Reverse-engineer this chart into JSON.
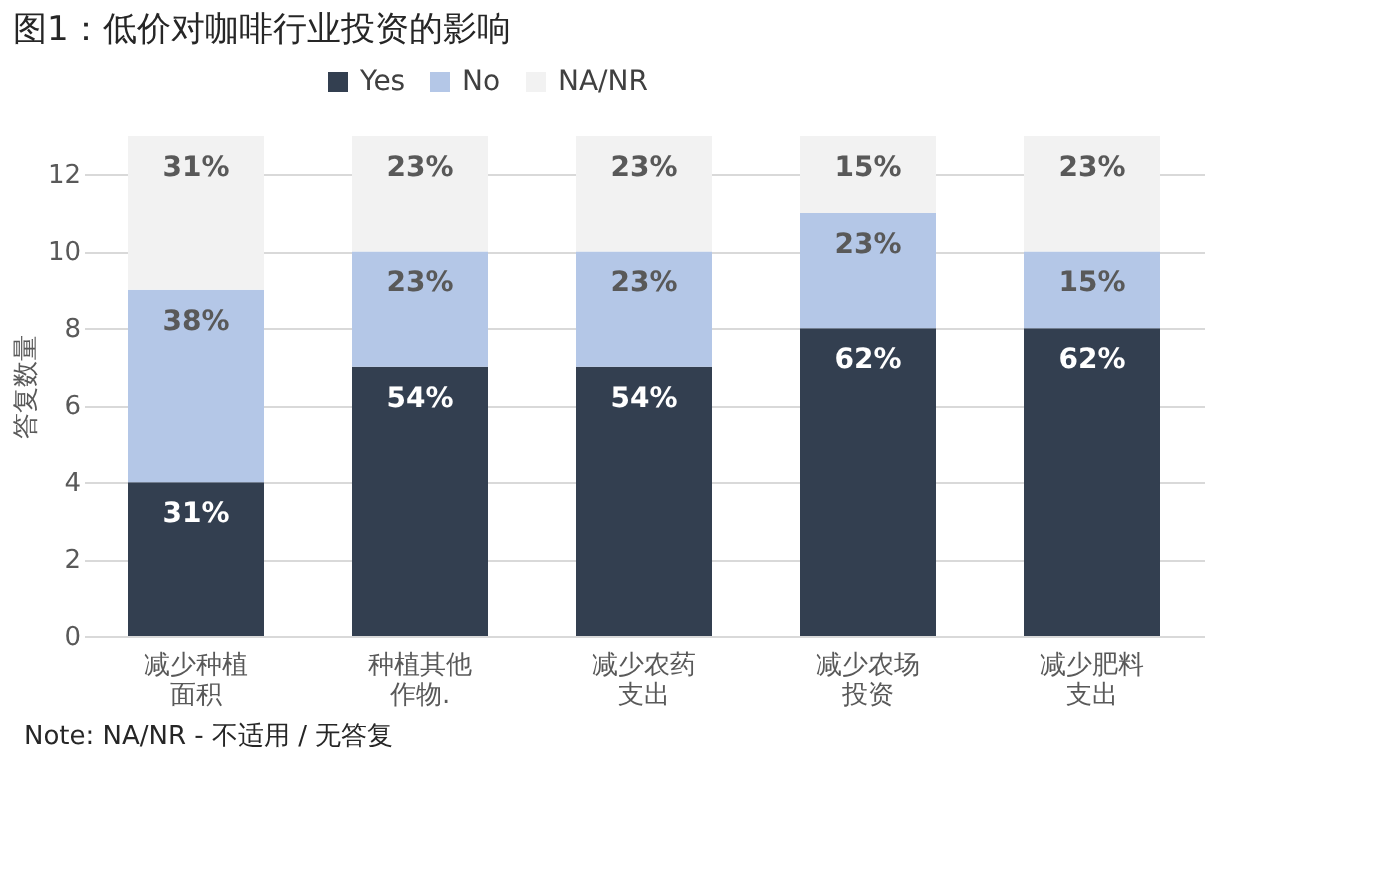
{
  "chart_data": {
    "type": "bar",
    "stacked": true,
    "title": "图1：低价对咖啡行业投资的影响",
    "ylabel": "答复数量",
    "categories": [
      "减少种植面积",
      "种植其他作物.",
      "减少农药支出",
      "减少农场投资",
      "减少肥料支出"
    ],
    "series": [
      {
        "name": "Yes",
        "color": "#333f50",
        "values": [
          4,
          7,
          7,
          8,
          8
        ]
      },
      {
        "name": "No",
        "color": "#b4c7e7",
        "values": [
          5,
          3,
          3,
          3,
          2
        ]
      },
      {
        "name": "NA/NR",
        "color": "#f2f2f2",
        "values": [
          4,
          3,
          3,
          2,
          3
        ]
      }
    ],
    "ylim": [
      0,
      13
    ],
    "yticks": [
      0,
      2,
      4,
      6,
      8,
      10,
      12
    ],
    "grid": "y",
    "legend": "top",
    "annotations": [
      {
        "text": "31%",
        "x": "减少种植面积",
        "y": 4
      },
      {
        "text": "54%",
        "x": "种植其他作物.",
        "y": 7
      },
      {
        "text": "54%",
        "x": "减少农药支出",
        "y": 7
      },
      {
        "text": "62%",
        "x": "减少农场投资",
        "y": 8
      },
      {
        "text": "62%",
        "x": "减少肥料支出",
        "y": 8
      },
      {
        "text": "38%",
        "x": "减少种植面积",
        "y": 9
      },
      {
        "text": "23%",
        "x": "种植其他作物.",
        "y": 10
      },
      {
        "text": "23%",
        "x": "减少农药支出",
        "y": 10
      },
      {
        "text": "23%",
        "x": "减少农场投资",
        "y": 11
      },
      {
        "text": "15%",
        "x": "减少肥料支出",
        "y": 10
      },
      {
        "text": "31%",
        "x": "减少种植面积",
        "y": 13
      },
      {
        "text": "23%",
        "x": "种植其他作物.",
        "y": 13
      },
      {
        "text": "23%",
        "x": "减少农药支出",
        "y": 13
      },
      {
        "text": "15%",
        "x": "减少农场投资",
        "y": 13
      },
      {
        "text": "23%",
        "x": "减少肥料支出",
        "y": 13
      },
      "Note: NA/NR - 不适用 / 无答复"
    ]
  }
}
